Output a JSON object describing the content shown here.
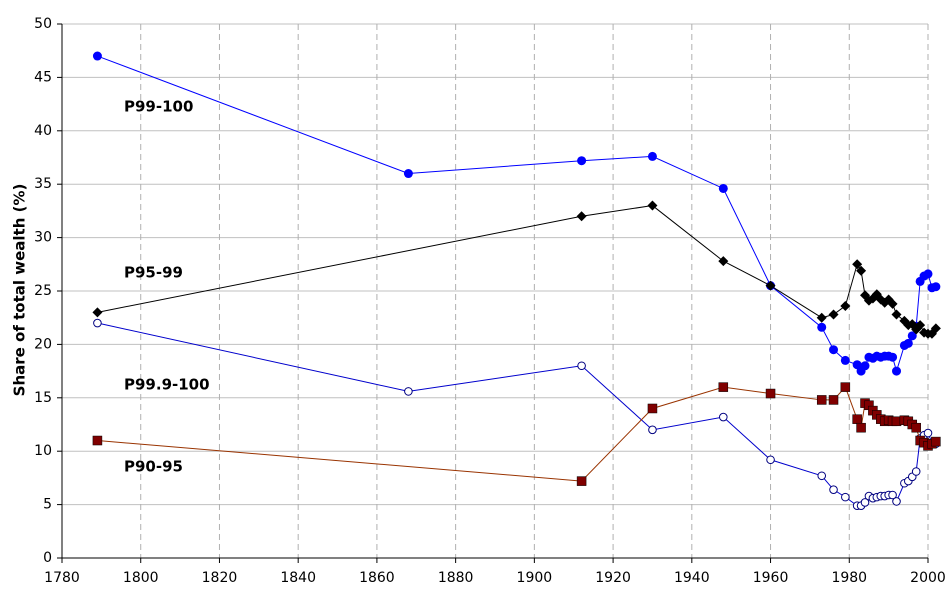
{
  "chart_data": {
    "type": "line",
    "y_label": "Share of total wealth (%)",
    "xlim": [
      1780,
      2000
    ],
    "xticks": [
      1780,
      1800,
      1820,
      1840,
      1860,
      1880,
      1900,
      1920,
      1940,
      1960,
      1980,
      2000
    ],
    "ylim": [
      0,
      50
    ],
    "yticks": [
      0,
      5,
      10,
      15,
      20,
      25,
      30,
      35,
      40,
      45,
      50
    ],
    "grid": true,
    "series": [
      {
        "name": "P99-100",
        "color": "#0000ff",
        "line_color": "#0000ff",
        "marker": "circle",
        "x": [
          1789,
          1868,
          1912,
          1930,
          1948,
          1960,
          1973,
          1976,
          1979,
          1982,
          1983,
          1984,
          1985,
          1986,
          1987,
          1988,
          1989,
          1990,
          1991,
          1992,
          1994,
          1995,
          1996,
          1997,
          1998,
          1999,
          2000,
          2001,
          2002
        ],
        "values": [
          47,
          36,
          37.2,
          37.6,
          34.6,
          25.5,
          21.6,
          19.5,
          18.5,
          18.1,
          17.5,
          18,
          18.8,
          18.7,
          18.9,
          18.8,
          18.9,
          18.9,
          18.8,
          17.5,
          19.9,
          20.1,
          20.8,
          21.7,
          25.9,
          26.4,
          26.6,
          25.3,
          25.4
        ]
      },
      {
        "name": "P95-99",
        "color": "#000000",
        "line_color": "#000000",
        "marker": "diamond",
        "x": [
          1789,
          1912,
          1930,
          1948,
          1960,
          1973,
          1976,
          1979,
          1982,
          1983,
          1984,
          1985,
          1986,
          1987,
          1988,
          1989,
          1990,
          1991,
          1992,
          1994,
          1995,
          1996,
          1997,
          1998,
          1999,
          2000,
          2001,
          2002
        ],
        "values": [
          23,
          32,
          33,
          27.8,
          25.5,
          22.5,
          22.8,
          23.6,
          27.5,
          26.9,
          24.6,
          24.1,
          24.3,
          24.7,
          24.2,
          23.9,
          24.2,
          23.8,
          22.8,
          22.2,
          21.8,
          21.9,
          21.4,
          21.8,
          21.1,
          21,
          21,
          21.5
        ]
      },
      {
        "name": "P99.9-100",
        "color": "#000080",
        "line_color": "#0000cc",
        "marker": "open-circle",
        "x": [
          1789,
          1868,
          1912,
          1930,
          1948,
          1960,
          1973,
          1976,
          1979,
          1982,
          1983,
          1984,
          1985,
          1986,
          1987,
          1988,
          1989,
          1990,
          1991,
          1992,
          1994,
          1995,
          1996,
          1997,
          1998,
          1999,
          2000,
          2001,
          2002
        ],
        "values": [
          22,
          15.6,
          18,
          12,
          13.2,
          9.2,
          7.7,
          6.4,
          5.7,
          4.9,
          4.9,
          5.2,
          5.8,
          5.6,
          5.7,
          5.8,
          5.8,
          5.9,
          5.9,
          5.3,
          7,
          7.2,
          7.6,
          8.1,
          11.2,
          11.5,
          11.7,
          10.8,
          10.7
        ]
      },
      {
        "name": "P90-95",
        "color": "#800000",
        "line_color": "#993300",
        "marker": "square",
        "x": [
          1789,
          1912,
          1930,
          1948,
          1960,
          1973,
          1976,
          1979,
          1982,
          1983,
          1984,
          1985,
          1986,
          1987,
          1988,
          1989,
          1990,
          1991,
          1992,
          1994,
          1995,
          1996,
          1997,
          1998,
          1999,
          2000,
          2001,
          2002
        ],
        "values": [
          11,
          7.2,
          14,
          16,
          15.4,
          14.8,
          14.8,
          16,
          13,
          12.2,
          14.5,
          14.3,
          13.8,
          13.4,
          13,
          12.8,
          12.9,
          12.8,
          12.8,
          12.9,
          12.8,
          12.5,
          12.2,
          11,
          10.8,
          10.5,
          10.7,
          10.9
        ]
      }
    ]
  }
}
